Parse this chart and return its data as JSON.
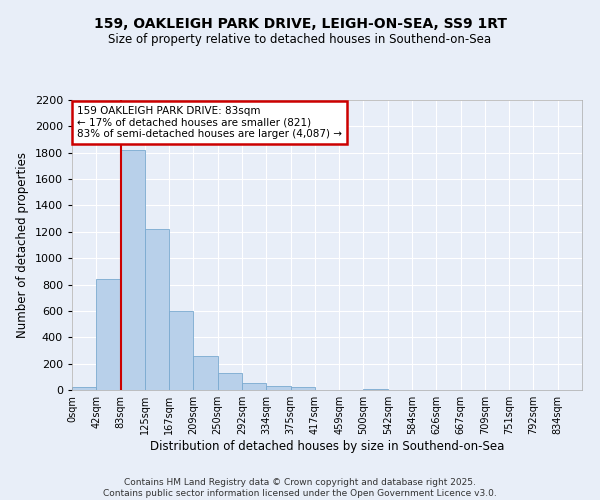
{
  "title1": "159, OAKLEIGH PARK DRIVE, LEIGH-ON-SEA, SS9 1RT",
  "title2": "Size of property relative to detached houses in Southend-on-Sea",
  "xlabel": "Distribution of detached houses by size in Southend-on-Sea",
  "ylabel": "Number of detached properties",
  "bar_color": "#b8d0ea",
  "bar_edge_color": "#7aaad0",
  "background_color": "#e8eef8",
  "grid_color": "#ffffff",
  "annotation_box_color": "#cc0000",
  "vline_color": "#cc0000",
  "tick_labels": [
    "0sqm",
    "42sqm",
    "83sqm",
    "125sqm",
    "167sqm",
    "209sqm",
    "250sqm",
    "292sqm",
    "334sqm",
    "375sqm",
    "417sqm",
    "459sqm",
    "500sqm",
    "542sqm",
    "584sqm",
    "626sqm",
    "667sqm",
    "709sqm",
    "751sqm",
    "792sqm",
    "834sqm"
  ],
  "bar_heights": [
    20,
    840,
    1820,
    1220,
    600,
    255,
    130,
    50,
    30,
    20,
    0,
    0,
    10,
    0,
    0,
    0,
    0,
    0,
    0,
    0,
    0
  ],
  "ylim": [
    0,
    2200
  ],
  "yticks": [
    0,
    200,
    400,
    600,
    800,
    1000,
    1200,
    1400,
    1600,
    1800,
    2000,
    2200
  ],
  "vline_position": 2,
  "annotation_text": "159 OAKLEIGH PARK DRIVE: 83sqm\n← 17% of detached houses are smaller (821)\n83% of semi-detached houses are larger (4,087) →",
  "footer_text": "Contains HM Land Registry data © Crown copyright and database right 2025.\nContains public sector information licensed under the Open Government Licence v3.0.",
  "bin_width": 42
}
